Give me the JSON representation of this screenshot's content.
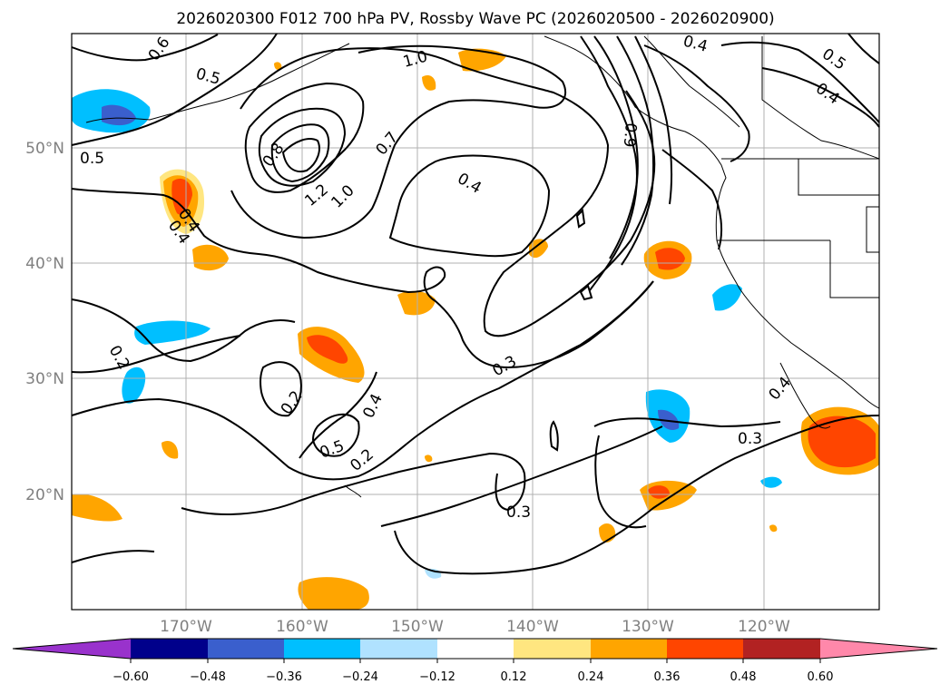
{
  "title": "2026020300 F012 700 hPa PV, Rossby Wave PC (2026020500 - 2026020900)",
  "lat_labels": [
    "50°N",
    "40°N",
    "30°N",
    "20°N"
  ],
  "lon_labels": [
    "170°W",
    "160°W",
    "150°W",
    "140°W",
    "130°W",
    "120°W"
  ],
  "contour_labels": [
    "0.6",
    "0.5",
    "1.0",
    "0.4",
    "0.5",
    "0.4",
    "0.5",
    "0.8",
    "0.7",
    "1.2",
    "1.0",
    "0.4",
    "0.9",
    "0.4",
    "0.4",
    "0.2",
    "0.3",
    "0.2",
    "0.4",
    "0.5",
    "0.2",
    "0.4",
    "0.3",
    "0.3"
  ],
  "colorbar": {
    "tick_labels": [
      "−0.60",
      "−0.48",
      "−0.36",
      "−0.24",
      "−0.12",
      "0.12",
      "0.24",
      "0.36",
      "0.48",
      "0.60"
    ],
    "colors": [
      "#9932cc",
      "#00008b",
      "#3a5fcd",
      "#00bfff",
      "#b0e2ff",
      "#ffffff",
      "#ffe680",
      "#ffa500",
      "#ff4500",
      "#b22222",
      "#ff88aa"
    ]
  }
}
